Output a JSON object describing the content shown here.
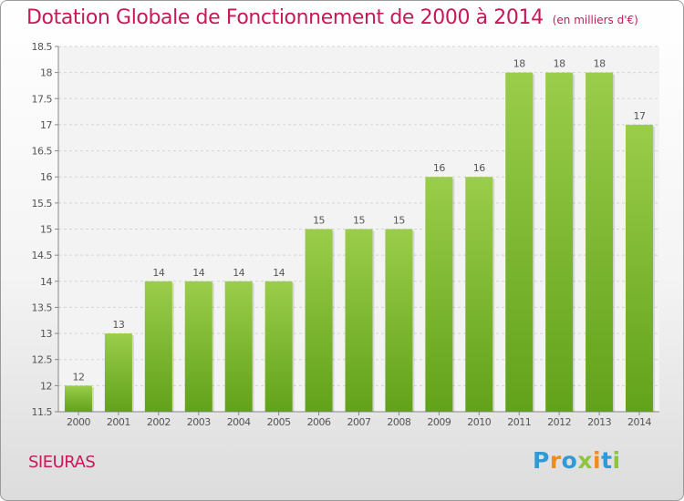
{
  "chart_data": {
    "type": "bar",
    "title": "Dotation Globale de Fonctionnement de 2000 à 2014",
    "subtitle": "(en milliers d'€)",
    "categories": [
      "2000",
      "2001",
      "2002",
      "2003",
      "2004",
      "2005",
      "2006",
      "2007",
      "2008",
      "2009",
      "2010",
      "2011",
      "2012",
      "2013",
      "2014"
    ],
    "values": [
      12,
      13,
      14,
      14,
      14,
      14,
      15,
      15,
      15,
      16,
      16,
      18,
      18,
      18,
      17
    ],
    "value_labels": [
      "12",
      "13",
      "14",
      "14",
      "14",
      "14",
      "15",
      "15",
      "15",
      "16",
      "16",
      "18",
      "18",
      "18",
      "17"
    ],
    "ylim": [
      11.5,
      18.5
    ],
    "yticks": [
      11.5,
      12,
      12.5,
      13,
      13.5,
      14,
      14.5,
      15,
      15.5,
      16,
      16.5,
      17,
      17.5,
      18,
      18.5
    ],
    "ytick_labels": [
      "11.5",
      "12",
      "12.5",
      "13",
      "13.5",
      "14",
      "14.5",
      "15",
      "15.5",
      "16",
      "16.5",
      "17",
      "17.5",
      "18",
      "18.5"
    ],
    "xlabel": "",
    "ylabel": "",
    "grid": true,
    "legend": "none",
    "colors": {
      "bar_top": "#9acd4a",
      "bar_bottom": "#62a21a",
      "label": "#555555",
      "title": "#c8185a"
    }
  },
  "commune": "SIEURAS",
  "logo": {
    "letters": [
      {
        "char": "P",
        "color": "#2e9ad6"
      },
      {
        "char": "r",
        "color": "#f08c1a"
      },
      {
        "char": "o",
        "color": "#2e9ad6"
      },
      {
        "char": "x",
        "color": "#8cc63f"
      },
      {
        "char": "i",
        "color": "#f08c1a"
      },
      {
        "char": "t",
        "color": "#2e9ad6"
      },
      {
        "char": "i",
        "color": "#8cc63f"
      }
    ]
  }
}
